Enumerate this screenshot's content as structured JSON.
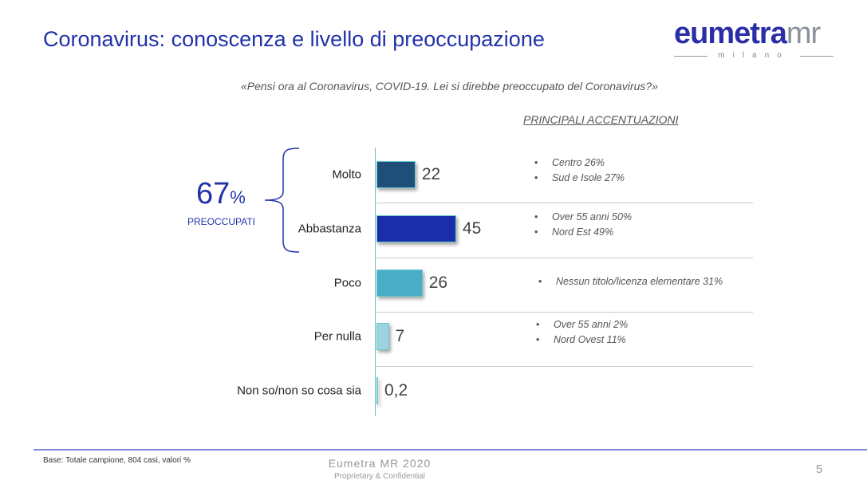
{
  "header": {
    "title": "Coronavirus: conoscenza e livello di preoccupazione",
    "logo_text": "eumetra",
    "logo_suffix": "mr",
    "logo_sub": "milano"
  },
  "question": "«Pensi ora al Coronavirus, COVID-19.  Lei si direbbe preoccupato del Coronavirus?»",
  "accentuations_heading": "PRINCIPALI ACCENTUAZIONI",
  "summary": {
    "value": "67",
    "unit": "%",
    "label": "PREOCCUPATI"
  },
  "chart_data": {
    "type": "bar",
    "orientation": "horizontal",
    "xlim": [
      0,
      100
    ],
    "categories": [
      "Molto",
      "Abbastanza",
      "Poco",
      "Per nulla",
      "Non so/non so cosa sia"
    ],
    "values": [
      22,
      45,
      26,
      7,
      0.2
    ],
    "value_labels": [
      "22",
      "45",
      "26",
      "7",
      "0,2"
    ],
    "colors": [
      "#1f4e79",
      "#1a2eaa",
      "#4bacc6",
      "#9dd3e0",
      "#d9eef3"
    ]
  },
  "accentuations": [
    [
      "Centro 26%",
      "Sud e Isole 27%"
    ],
    [
      "Over 55 anni 50%",
      "Nord Est 49%"
    ],
    [
      "Nessun titolo/licenza elementare 31%"
    ],
    [
      "Over 55 anni 2%",
      "Nord Ovest 11%"
    ],
    []
  ],
  "footer": {
    "base": "Base: Totale campione, 804 casi, valori %",
    "company": "Eumetra MR 2020",
    "confidential": "Proprietary & Confidential",
    "page": "5"
  }
}
